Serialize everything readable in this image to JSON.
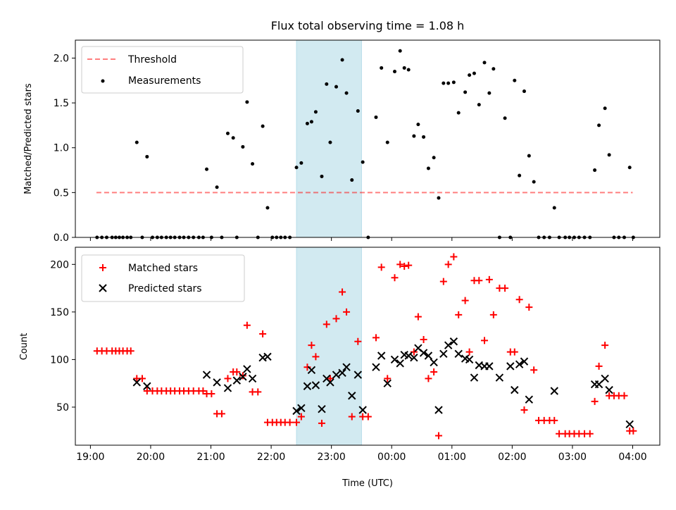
{
  "chart_data": [
    {
      "type": "scatter",
      "title": "Flux total observing time = 1.08 h",
      "xlabel": "",
      "ylabel": "Matched/Predicted stars",
      "xlim": [
        18.75,
        28.45
      ],
      "ylim": [
        0,
        2.2
      ],
      "yticks": [
        0.0,
        0.5,
        1.0,
        1.5,
        2.0
      ],
      "ytick_labels": [
        "0.0",
        "0.5",
        "1.0",
        "1.5",
        "2.0"
      ],
      "grid": false,
      "legend_position": "top-left",
      "shaded_span": {
        "x0": 22.42,
        "x1": 23.5,
        "color": "#add8e6"
      },
      "threshold": {
        "name": "Threshold",
        "value": 0.5,
        "x0": 19.1,
        "x1": 28.0,
        "color": "#ff0000"
      },
      "series": [
        {
          "name": "Measurements",
          "color": "#000000",
          "marker": "dot",
          "x": [
            19.11,
            19.19,
            19.27,
            19.36,
            19.42,
            19.48,
            19.54,
            19.61,
            19.67,
            19.77,
            19.86,
            19.94,
            20.03,
            20.11,
            20.18,
            20.26,
            20.33,
            20.4,
            20.48,
            20.55,
            20.63,
            20.71,
            20.8,
            20.87,
            20.93,
            21.01,
            21.1,
            21.18,
            21.28,
            21.37,
            21.43,
            21.53,
            21.6,
            21.69,
            21.78,
            21.86,
            21.94,
            22.02,
            22.09,
            22.16,
            22.23,
            22.31,
            22.42,
            22.5,
            22.6,
            22.67,
            22.74,
            22.84,
            22.92,
            22.98,
            23.08,
            23.18,
            23.25,
            23.34,
            23.44,
            23.52,
            23.61,
            23.74,
            23.83,
            23.93,
            24.05,
            24.14,
            24.21,
            24.28,
            24.37,
            24.44,
            24.53,
            24.61,
            24.7,
            24.78,
            24.86,
            24.94,
            25.03,
            25.11,
            25.22,
            25.29,
            25.37,
            25.45,
            25.54,
            25.62,
            25.69,
            25.79,
            25.88,
            25.97,
            26.04,
            26.12,
            26.2,
            26.28,
            26.36,
            26.44,
            26.53,
            26.62,
            26.7,
            26.78,
            26.88,
            26.95,
            27.03,
            27.11,
            27.2,
            27.29,
            27.37,
            27.44,
            27.54,
            27.61,
            27.69,
            27.77,
            27.86,
            27.95,
            28.01
          ],
          "y": [
            0,
            0,
            0,
            0,
            0,
            0,
            0,
            0,
            0,
            1.06,
            0,
            0.9,
            0,
            0,
            0,
            0,
            0,
            0,
            0,
            0,
            0,
            0,
            0,
            0,
            0.76,
            0,
            0.56,
            0,
            1.16,
            1.11,
            0,
            1.01,
            1.51,
            0.82,
            0,
            1.24,
            0.33,
            0,
            0,
            0,
            0,
            0,
            0.78,
            0.83,
            1.27,
            1.29,
            1.4,
            0.68,
            1.71,
            1.06,
            1.68,
            1.98,
            1.61,
            0.64,
            1.41,
            0.84,
            0,
            1.34,
            1.89,
            1.06,
            1.85,
            2.08,
            1.89,
            1.87,
            1.13,
            1.26,
            1.12,
            0.77,
            0.89,
            0.44,
            1.72,
            1.72,
            1.73,
            1.39,
            1.62,
            1.81,
            1.83,
            1.48,
            1.95,
            1.61,
            1.88,
            0,
            1.33,
            0,
            1.75,
            0.69,
            1.63,
            0.91,
            0.62,
            0,
            0,
            0,
            0.33,
            0,
            0,
            0,
            0,
            0,
            0,
            0,
            0.75,
            1.25,
            1.44,
            0.92,
            0,
            0,
            0,
            0.78,
            0
          ]
        }
      ]
    },
    {
      "type": "scatter",
      "title": "",
      "xlabel": "Time (UTC)",
      "ylabel": "Count",
      "xlim": [
        18.75,
        28.45
      ],
      "ylim": [
        10,
        218
      ],
      "yticks": [
        50,
        100,
        150,
        200
      ],
      "ytick_labels": [
        "50",
        "100",
        "150",
        "200"
      ],
      "xticks": [
        19,
        20,
        21,
        22,
        23,
        24,
        25,
        26,
        27,
        28
      ],
      "xtick_labels": [
        "19:00",
        "20:00",
        "21:00",
        "22:00",
        "23:00",
        "00:00",
        "01:00",
        "02:00",
        "03:00",
        "04:00"
      ],
      "grid": false,
      "legend_position": "top-left",
      "shaded_span": {
        "x0": 22.42,
        "x1": 23.5,
        "color": "#add8e6"
      },
      "series": [
        {
          "name": "Matched stars",
          "color": "#ff0000",
          "marker": "plus",
          "x": [
            19.11,
            19.19,
            19.27,
            19.36,
            19.42,
            19.48,
            19.54,
            19.61,
            19.67,
            19.77,
            19.86,
            19.94,
            20.03,
            20.11,
            20.18,
            20.26,
            20.33,
            20.4,
            20.48,
            20.55,
            20.63,
            20.71,
            20.8,
            20.87,
            20.93,
            21.01,
            21.1,
            21.18,
            21.28,
            21.37,
            21.43,
            21.53,
            21.6,
            21.69,
            21.78,
            21.86,
            21.94,
            22.02,
            22.09,
            22.16,
            22.23,
            22.31,
            22.42,
            22.5,
            22.6,
            22.67,
            22.74,
            22.84,
            22.92,
            22.98,
            23.08,
            23.18,
            23.25,
            23.34,
            23.44,
            23.52,
            23.61,
            23.74,
            23.83,
            23.93,
            24.05,
            24.14,
            24.21,
            24.28,
            24.37,
            24.44,
            24.53,
            24.61,
            24.7,
            24.78,
            24.86,
            24.94,
            25.03,
            25.11,
            25.22,
            25.29,
            25.37,
            25.45,
            25.54,
            25.62,
            25.69,
            25.79,
            25.88,
            25.97,
            26.04,
            26.12,
            26.2,
            26.28,
            26.36,
            26.44,
            26.53,
            26.62,
            26.7,
            26.78,
            26.88,
            26.95,
            27.03,
            27.11,
            27.2,
            27.29,
            27.37,
            27.44,
            27.54,
            27.61,
            27.69,
            27.77,
            27.86,
            27.95,
            28.01
          ],
          "y": [
            109,
            109,
            109,
            109,
            109,
            109,
            109,
            109,
            109,
            80,
            80,
            67,
            67,
            67,
            67,
            67,
            67,
            67,
            67,
            67,
            67,
            67,
            67,
            67,
            64,
            64,
            43,
            43,
            80,
            87,
            87,
            83,
            136,
            66,
            66,
            127,
            34,
            34,
            34,
            34,
            34,
            34,
            34,
            40,
            92,
            115,
            103,
            33,
            137,
            80,
            143,
            171,
            150,
            40,
            119,
            40,
            40,
            123,
            197,
            80,
            186,
            200,
            198,
            199,
            108,
            145,
            121,
            80,
            87,
            20,
            182,
            200,
            208,
            147,
            162,
            108,
            183,
            183,
            120,
            184,
            147,
            175,
            175,
            108,
            108,
            163,
            47,
            155,
            89,
            36,
            36,
            36,
            36,
            22,
            22,
            22,
            22,
            22,
            22,
            22,
            56,
            93,
            115,
            62,
            62,
            62,
            62,
            25,
            25
          ]
        },
        {
          "name": "Predicted stars",
          "color": "#000000",
          "marker": "x",
          "x": [
            19.77,
            19.94,
            20.93,
            21.1,
            21.28,
            21.43,
            21.53,
            21.6,
            21.69,
            21.86,
            21.94,
            22.42,
            22.5,
            22.6,
            22.67,
            22.74,
            22.84,
            22.92,
            22.98,
            23.08,
            23.18,
            23.25,
            23.34,
            23.44,
            23.52,
            23.74,
            23.83,
            23.93,
            24.05,
            24.14,
            24.21,
            24.28,
            24.37,
            24.44,
            24.53,
            24.61,
            24.7,
            24.78,
            24.86,
            24.94,
            25.03,
            25.11,
            25.22,
            25.29,
            25.37,
            25.45,
            25.54,
            25.62,
            25.79,
            25.97,
            26.04,
            26.12,
            26.2,
            26.28,
            26.7,
            27.37,
            27.44,
            27.54,
            27.61,
            27.95
          ],
          "y": [
            76,
            72,
            84,
            76,
            70,
            78,
            82,
            90,
            80,
            102,
            103,
            46,
            49,
            72,
            89,
            73,
            48,
            80,
            76,
            84,
            86,
            92,
            62,
            84,
            47,
            92,
            104,
            75,
            100,
            96,
            105,
            104,
            102,
            112,
            107,
            104,
            97,
            47,
            106,
            115,
            119,
            106,
            101,
            100,
            81,
            94,
            93,
            93,
            81,
            93,
            68,
            95,
            98,
            58,
            67,
            74,
            74,
            80,
            68,
            32
          ]
        }
      ]
    }
  ]
}
